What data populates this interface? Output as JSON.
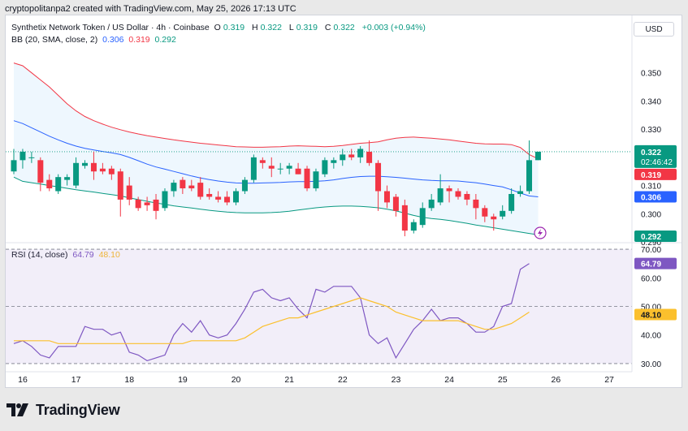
{
  "header": {
    "credit": "cryptopolitanpa2 created with TradingView.com, May 25, 2026 17:13 UTC"
  },
  "legend": {
    "symbol_title": "Synthetix Network Token / US Dollar · 4h · Coinbase",
    "o_label": "O",
    "o_value": "0.319",
    "h_label": "H",
    "h_value": "0.322",
    "l_label": "L",
    "l_value": "0.319",
    "c_label": "C",
    "c_value": "0.322",
    "change": "+0.003 (+0.94%)",
    "bb_label": "BB (20, SMA, close, 2)",
    "bb_mid": "0.306",
    "bb_upper": "0.319",
    "bb_lower": "0.292",
    "rsi_label": "RSI (14, close)",
    "rsi_value": "64.79",
    "rsi_ma": "48.10"
  },
  "currency_button": "USD",
  "branding": {
    "logo_text": "TradingView"
  },
  "chart_data": [
    {
      "type": "candlestick",
      "title": "Synthetix Network Token / US Dollar · 4h · Coinbase",
      "ylim": [
        0.29,
        0.36
      ],
      "y_ticks": [
        "0.350",
        "0.340",
        "0.330",
        "0.320",
        "0.310",
        "0.300",
        "0.290"
      ],
      "x_tick_labels": [
        "16",
        "17",
        "18",
        "19",
        "20",
        "21",
        "22",
        "23",
        "24",
        "25",
        "26",
        "27"
      ],
      "x_tick_positions": [
        0,
        6,
        12,
        18,
        24,
        30,
        36,
        42,
        48,
        54,
        60,
        66
      ],
      "last_price_label": "0.322",
      "countdown_label": "02:46:42",
      "candles": [
        {
          "o": 0.315,
          "h": 0.323,
          "l": 0.314,
          "c": 0.319
        },
        {
          "o": 0.319,
          "h": 0.323,
          "l": 0.316,
          "c": 0.322
        },
        {
          "o": 0.32,
          "h": 0.322,
          "l": 0.318,
          "c": 0.32
        },
        {
          "o": 0.319,
          "h": 0.32,
          "l": 0.308,
          "c": 0.311
        },
        {
          "o": 0.312,
          "h": 0.314,
          "l": 0.308,
          "c": 0.309
        },
        {
          "o": 0.308,
          "h": 0.314,
          "l": 0.307,
          "c": 0.313
        },
        {
          "o": 0.312,
          "h": 0.314,
          "l": 0.31,
          "c": 0.313
        },
        {
          "o": 0.31,
          "h": 0.32,
          "l": 0.309,
          "c": 0.318
        },
        {
          "o": 0.317,
          "h": 0.319,
          "l": 0.316,
          "c": 0.318
        },
        {
          "o": 0.318,
          "h": 0.322,
          "l": 0.312,
          "c": 0.315
        },
        {
          "o": 0.316,
          "h": 0.318,
          "l": 0.314,
          "c": 0.315
        },
        {
          "o": 0.316,
          "h": 0.317,
          "l": 0.312,
          "c": 0.314
        },
        {
          "o": 0.315,
          "h": 0.316,
          "l": 0.299,
          "c": 0.305
        },
        {
          "o": 0.31,
          "h": 0.313,
          "l": 0.303,
          "c": 0.305
        },
        {
          "o": 0.305,
          "h": 0.306,
          "l": 0.301,
          "c": 0.302
        },
        {
          "o": 0.304,
          "h": 0.306,
          "l": 0.301,
          "c": 0.303
        },
        {
          "o": 0.305,
          "h": 0.307,
          "l": 0.298,
          "c": 0.301
        },
        {
          "o": 0.302,
          "h": 0.309,
          "l": 0.301,
          "c": 0.308
        },
        {
          "o": 0.308,
          "h": 0.312,
          "l": 0.306,
          "c": 0.311
        },
        {
          "o": 0.312,
          "h": 0.313,
          "l": 0.307,
          "c": 0.309
        },
        {
          "o": 0.31,
          "h": 0.312,
          "l": 0.308,
          "c": 0.309
        },
        {
          "o": 0.311,
          "h": 0.313,
          "l": 0.305,
          "c": 0.306
        },
        {
          "o": 0.307,
          "h": 0.309,
          "l": 0.305,
          "c": 0.306
        },
        {
          "o": 0.306,
          "h": 0.308,
          "l": 0.304,
          "c": 0.305
        },
        {
          "o": 0.306,
          "h": 0.308,
          "l": 0.303,
          "c": 0.304
        },
        {
          "o": 0.304,
          "h": 0.309,
          "l": 0.303,
          "c": 0.308
        },
        {
          "o": 0.308,
          "h": 0.313,
          "l": 0.307,
          "c": 0.312
        },
        {
          "o": 0.312,
          "h": 0.321,
          "l": 0.311,
          "c": 0.32
        },
        {
          "o": 0.319,
          "h": 0.32,
          "l": 0.316,
          "c": 0.318
        },
        {
          "o": 0.317,
          "h": 0.32,
          "l": 0.313,
          "c": 0.316
        },
        {
          "o": 0.316,
          "h": 0.318,
          "l": 0.314,
          "c": 0.316
        },
        {
          "o": 0.316,
          "h": 0.318,
          "l": 0.314,
          "c": 0.317
        },
        {
          "o": 0.316,
          "h": 0.318,
          "l": 0.314,
          "c": 0.314
        },
        {
          "o": 0.316,
          "h": 0.317,
          "l": 0.308,
          "c": 0.309
        },
        {
          "o": 0.309,
          "h": 0.316,
          "l": 0.308,
          "c": 0.315
        },
        {
          "o": 0.314,
          "h": 0.32,
          "l": 0.313,
          "c": 0.319
        },
        {
          "o": 0.318,
          "h": 0.32,
          "l": 0.316,
          "c": 0.319
        },
        {
          "o": 0.319,
          "h": 0.323,
          "l": 0.317,
          "c": 0.321
        },
        {
          "o": 0.321,
          "h": 0.323,
          "l": 0.319,
          "c": 0.32
        },
        {
          "o": 0.32,
          "h": 0.324,
          "l": 0.318,
          "c": 0.323
        },
        {
          "o": 0.322,
          "h": 0.326,
          "l": 0.317,
          "c": 0.318
        },
        {
          "o": 0.318,
          "h": 0.319,
          "l": 0.301,
          "c": 0.308
        },
        {
          "o": 0.308,
          "h": 0.31,
          "l": 0.302,
          "c": 0.304
        },
        {
          "o": 0.306,
          "h": 0.307,
          "l": 0.299,
          "c": 0.301
        },
        {
          "o": 0.303,
          "h": 0.305,
          "l": 0.292,
          "c": 0.294
        },
        {
          "o": 0.294,
          "h": 0.298,
          "l": 0.293,
          "c": 0.297
        },
        {
          "o": 0.296,
          "h": 0.304,
          "l": 0.295,
          "c": 0.302
        },
        {
          "o": 0.302,
          "h": 0.307,
          "l": 0.301,
          "c": 0.305
        },
        {
          "o": 0.304,
          "h": 0.314,
          "l": 0.303,
          "c": 0.309
        },
        {
          "o": 0.309,
          "h": 0.31,
          "l": 0.304,
          "c": 0.308
        },
        {
          "o": 0.308,
          "h": 0.309,
          "l": 0.305,
          "c": 0.306
        },
        {
          "o": 0.307,
          "h": 0.308,
          "l": 0.303,
          "c": 0.305
        },
        {
          "o": 0.305,
          "h": 0.307,
          "l": 0.298,
          "c": 0.302
        },
        {
          "o": 0.302,
          "h": 0.303,
          "l": 0.297,
          "c": 0.299
        },
        {
          "o": 0.299,
          "h": 0.3,
          "l": 0.294,
          "c": 0.298
        },
        {
          "o": 0.299,
          "h": 0.303,
          "l": 0.298,
          "c": 0.301
        },
        {
          "o": 0.301,
          "h": 0.309,
          "l": 0.3,
          "c": 0.307
        },
        {
          "o": 0.307,
          "h": 0.31,
          "l": 0.306,
          "c": 0.308
        },
        {
          "o": 0.308,
          "h": 0.326,
          "l": 0.307,
          "c": 0.319
        },
        {
          "o": 0.319,
          "h": 0.322,
          "l": 0.319,
          "c": 0.322
        }
      ],
      "bollinger": {
        "upper": [
          0.3535,
          0.3525,
          0.35,
          0.3475,
          0.345,
          0.342,
          0.339,
          0.3365,
          0.3345,
          0.333,
          0.3318,
          0.3307,
          0.3298,
          0.329,
          0.3283,
          0.3277,
          0.3272,
          0.3267,
          0.3262,
          0.3258,
          0.3254,
          0.325,
          0.3247,
          0.3244,
          0.3241,
          0.3238,
          0.3237,
          0.3236,
          0.3236,
          0.3237,
          0.3238,
          0.324,
          0.3241,
          0.324,
          0.3239,
          0.3238,
          0.3239,
          0.3242,
          0.3246,
          0.325,
          0.3252,
          0.3255,
          0.3262,
          0.3268,
          0.3271,
          0.3272,
          0.327,
          0.3268,
          0.3265,
          0.3262,
          0.3258,
          0.3254,
          0.325,
          0.3248,
          0.3247,
          0.3247,
          0.3245,
          0.3235,
          0.321,
          0.3195
        ],
        "middle": [
          0.333,
          0.332,
          0.3305,
          0.329,
          0.3275,
          0.3262,
          0.325,
          0.324,
          0.3232,
          0.3226,
          0.3221,
          0.3216,
          0.321,
          0.32,
          0.3188,
          0.3176,
          0.3166,
          0.3158,
          0.315,
          0.3142,
          0.3134,
          0.3127,
          0.3121,
          0.3116,
          0.3112,
          0.3109,
          0.3108,
          0.3108,
          0.3109,
          0.311,
          0.3111,
          0.3113,
          0.3114,
          0.3114,
          0.3115,
          0.3117,
          0.312,
          0.3125,
          0.3129,
          0.3132,
          0.3133,
          0.3133,
          0.3131,
          0.3129,
          0.3126,
          0.3123,
          0.312,
          0.3118,
          0.3117,
          0.3117,
          0.3116,
          0.3113,
          0.311,
          0.3105,
          0.31,
          0.3095,
          0.3085,
          0.3073,
          0.3063,
          0.306
        ],
        "lower": [
          0.313,
          0.3115,
          0.311,
          0.3105,
          0.31,
          0.3095,
          0.309,
          0.3085,
          0.3081,
          0.3077,
          0.3072,
          0.3068,
          0.3063,
          0.3056,
          0.305,
          0.3044,
          0.3038,
          0.3033,
          0.3028,
          0.3024,
          0.302,
          0.3016,
          0.3012,
          0.3009,
          0.3006,
          0.3004,
          0.3003,
          0.3003,
          0.3003,
          0.3004,
          0.3006,
          0.3009,
          0.3013,
          0.3017,
          0.3021,
          0.3024,
          0.3026,
          0.3027,
          0.3027,
          0.3026,
          0.3024,
          0.3021,
          0.3016,
          0.301,
          0.3002,
          0.2994,
          0.2987,
          0.2983,
          0.298,
          0.2976,
          0.2971,
          0.2966,
          0.296,
          0.2955,
          0.295,
          0.2945,
          0.294,
          0.2935,
          0.293,
          0.2925
        ]
      },
      "price_labels": [
        {
          "value": 0.322,
          "text": "0.322",
          "color": "#089981"
        },
        {
          "value": 0.319,
          "text": "0.319",
          "color": "#f23645"
        },
        {
          "value": 0.306,
          "text": "0.306",
          "color": "#2962ff"
        },
        {
          "value": 0.292,
          "text": "0.292",
          "color": "#089981"
        }
      ]
    },
    {
      "type": "line",
      "title": "RSI (14, close)",
      "ylim": [
        28,
        72
      ],
      "y_ticks": [
        "70.00",
        "60.00",
        "50.00",
        "40.00",
        "30.00"
      ],
      "bands": {
        "upper": 70,
        "middle": 50,
        "lower": 30
      },
      "series": [
        {
          "name": "RSI",
          "color": "#7e57c2",
          "values": [
            37,
            38,
            36,
            33,
            32,
            36,
            36,
            36,
            43,
            42,
            42,
            40,
            41,
            34,
            33,
            31,
            32,
            33,
            40,
            44,
            41,
            45,
            40,
            39,
            40,
            44,
            49,
            55,
            56,
            53,
            52,
            53,
            49,
            46,
            56,
            55,
            57,
            57,
            57,
            53,
            40,
            37,
            39,
            32,
            37,
            42,
            45,
            49,
            45,
            46,
            46,
            44,
            41,
            41,
            43,
            50,
            51,
            63,
            65
          ],
          "label": "64.79"
        },
        {
          "name": "RSI-based MA",
          "color": "#fbc02d",
          "values": [
            38,
            38,
            38,
            38,
            38,
            37,
            37,
            37,
            37,
            37,
            37,
            37,
            37,
            37,
            37,
            37,
            37,
            37,
            37,
            37,
            38,
            38,
            38,
            38,
            38,
            38,
            39,
            41,
            43,
            44,
            45,
            46,
            46,
            47,
            48,
            49,
            50,
            51,
            52,
            53,
            52,
            51,
            50,
            48,
            47,
            46,
            45,
            45,
            45,
            45,
            45,
            44,
            43,
            42,
            42,
            43,
            44,
            46,
            48
          ],
          "label": "48.10"
        }
      ]
    }
  ]
}
